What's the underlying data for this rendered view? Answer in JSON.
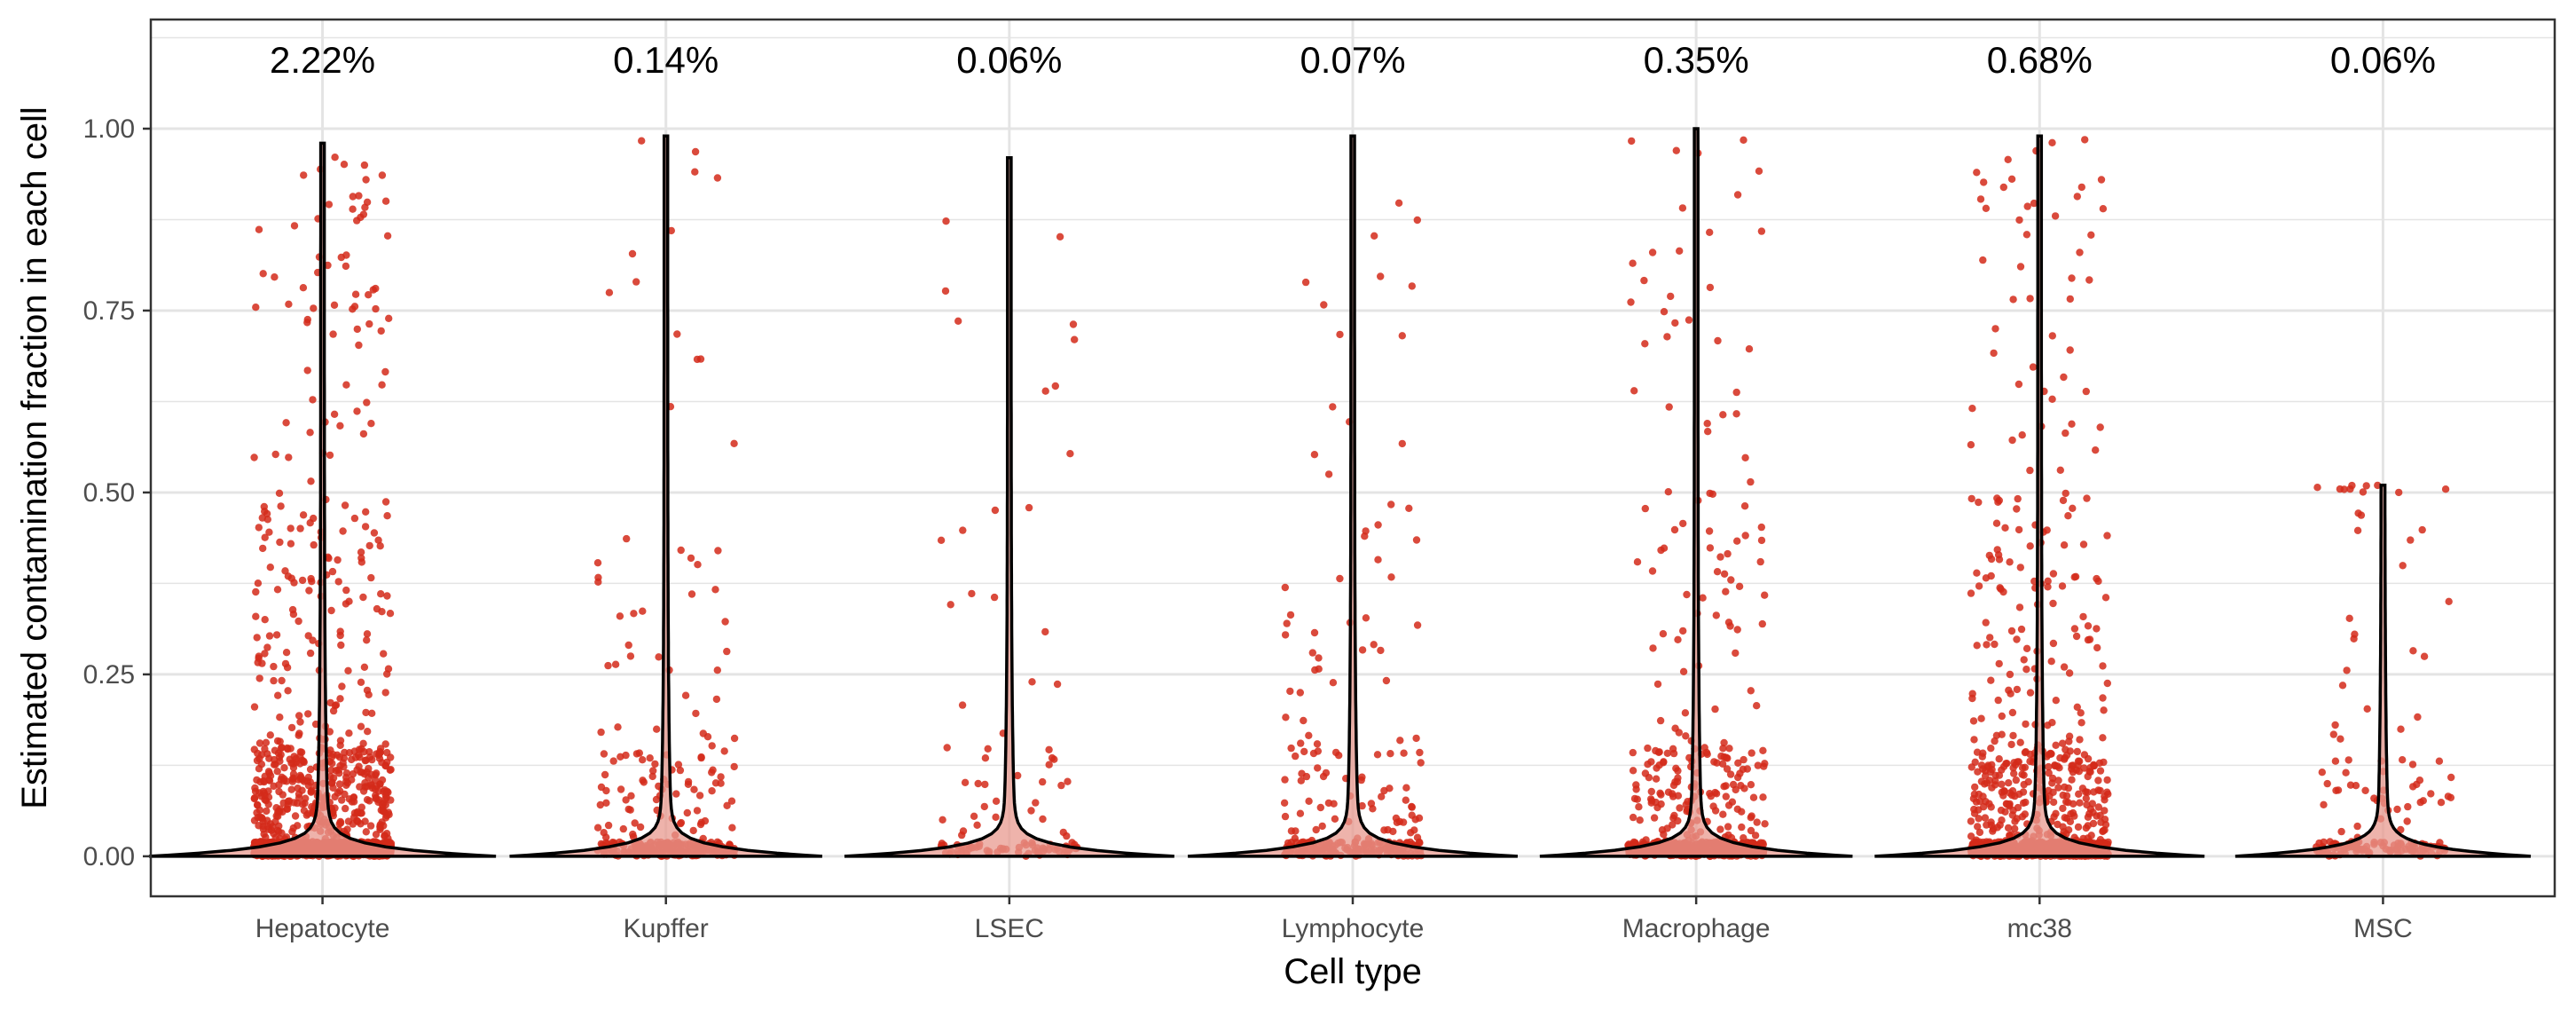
{
  "chart_data": {
    "type": "violin",
    "xlabel": "Cell type",
    "ylabel": "Estimated contamination fraction in each cell",
    "categories": [
      "Hepatocyte",
      "Kupffer",
      "LSEC",
      "Lymphocyte",
      "Macrophage",
      "mc38",
      "MSC"
    ],
    "annotations": [
      "2.22%",
      "0.14%",
      "0.06%",
      "0.07%",
      "0.35%",
      "0.68%",
      "0.06%"
    ],
    "ylim": [
      -0.055,
      1.15
    ],
    "yticks": [
      0.0,
      0.25,
      0.5,
      0.75,
      1.0
    ],
    "ytick_labels": [
      "0.00",
      "0.25",
      "0.50",
      "0.75",
      "1.00"
    ],
    "grid": true,
    "violin_max": [
      0.98,
      0.99,
      0.96,
      0.99,
      1.0,
      0.99,
      0.51
    ],
    "violin_rel_width": [
      1.0,
      0.9,
      0.95,
      0.95,
      0.9,
      0.95,
      0.85
    ],
    "point_density": [
      1.0,
      0.22,
      0.08,
      0.2,
      0.45,
      0.8,
      0.12
    ],
    "colors": {
      "points": "#d42a1a",
      "violin_fill": "#e8998f",
      "violin_stroke": "#000000",
      "grid": "#e4e4e4",
      "panel_border": "#333333"
    }
  }
}
